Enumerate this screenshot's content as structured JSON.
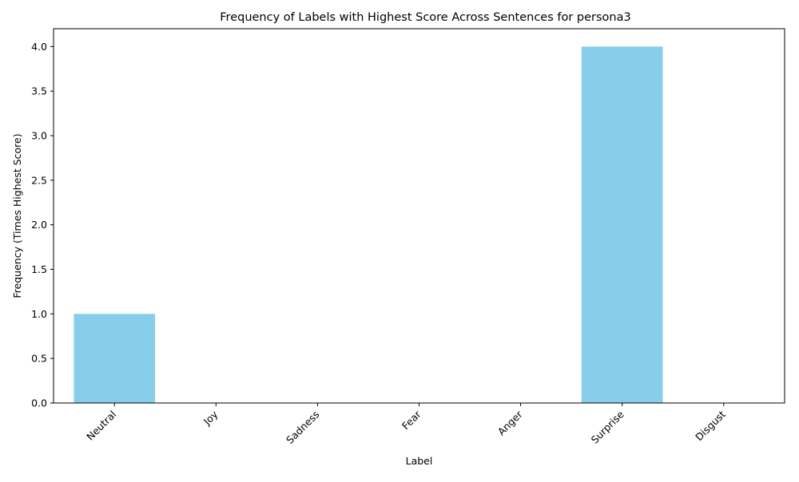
{
  "chart_data": {
    "type": "bar",
    "title": "Frequency of Labels with Highest Score Across Sentences for persona3",
    "xlabel": "Label",
    "ylabel": "Frequency (Times Highest Score)",
    "categories": [
      "Neutral",
      "Joy",
      "Sadness",
      "Fear",
      "Anger",
      "Surprise",
      "Disgust"
    ],
    "values": [
      1,
      0,
      0,
      0,
      0,
      4,
      0
    ],
    "ylim": [
      0,
      4.2
    ],
    "yticks": [
      "0.0",
      "0.5",
      "1.0",
      "1.5",
      "2.0",
      "2.5",
      "3.0",
      "3.5",
      "4.0"
    ],
    "bar_color": "#87CEEB",
    "grid": false,
    "legend": "none"
  }
}
